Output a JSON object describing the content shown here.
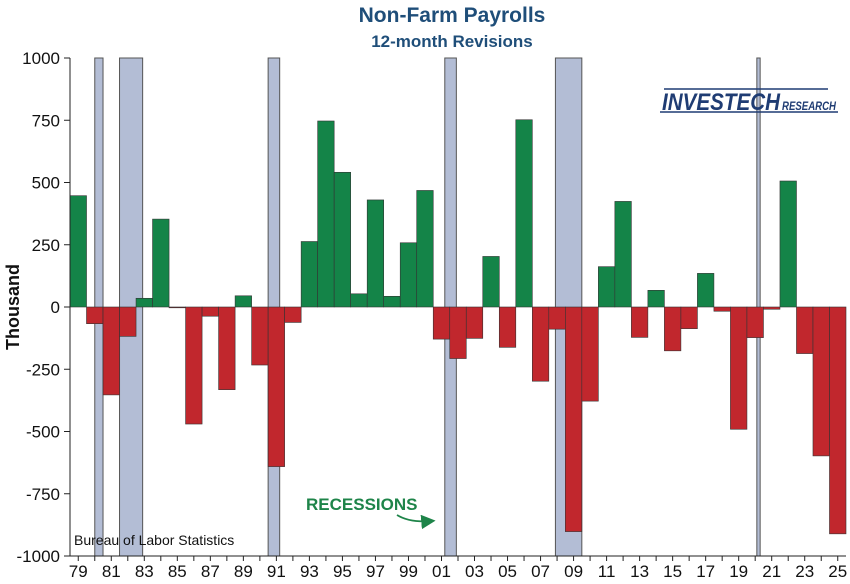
{
  "chart_data": {
    "type": "bar",
    "title": "Non-Farm Payrolls",
    "subtitle": "12-month Revisions",
    "ylabel": "Thousand",
    "ylim": [
      -1000,
      1000
    ],
    "yticks": [
      1000,
      750,
      500,
      250,
      0,
      -250,
      -500,
      -750,
      -1000
    ],
    "ytick_labels": [
      "1000",
      "750",
      "500",
      "250",
      "0",
      "-250",
      "-500",
      "-750",
      "-1000"
    ],
    "xtick_labels": [
      "79",
      "81",
      "83",
      "85",
      "87",
      "89",
      "91",
      "93",
      "95",
      "97",
      "99",
      "01",
      "03",
      "05",
      "07",
      "09",
      "11",
      "13",
      "15",
      "17",
      "19",
      "21",
      "23",
      "25"
    ],
    "x": [
      1979,
      1980,
      1981,
      1982,
      1983,
      1984,
      1985,
      1986,
      1987,
      1988,
      1989,
      1990,
      1991,
      1992,
      1993,
      1994,
      1995,
      1996,
      1997,
      1998,
      1999,
      2000,
      2001,
      2002,
      2003,
      2004,
      2005,
      2006,
      2007,
      2008,
      2009,
      2010,
      2011,
      2012,
      2013,
      2014,
      2015,
      2016,
      2017,
      2018,
      2019,
      2020,
      2021,
      2022,
      2023,
      2024,
      2025
    ],
    "values": [
      447,
      -67,
      -353,
      -118,
      35,
      353,
      -3,
      -470,
      -37,
      -332,
      45,
      -233,
      -641,
      -62,
      263,
      747,
      541,
      53,
      430,
      43,
      258,
      468,
      -129,
      -207,
      -126,
      203,
      -162,
      752,
      -298,
      -89,
      -902,
      -378,
      162,
      424,
      -122,
      67,
      -176,
      -87,
      135,
      -17,
      -491,
      -123,
      -9,
      506,
      -187,
      -598,
      -911
    ],
    "colors": {
      "positive": "#148448",
      "negative": "#c1272d",
      "recession": "#b3bdd5"
    },
    "recessions": [
      [
        1980.0,
        1980.5
      ],
      [
        1981.5,
        1982.9
      ],
      [
        1990.5,
        1991.2
      ],
      [
        2001.2,
        2001.9
      ],
      [
        2007.9,
        2009.5
      ],
      [
        2020.1,
        2020.3
      ]
    ],
    "annotations": {
      "recessions_label": "RECESSIONS",
      "source": "Bureau of Labor Statistics"
    },
    "logo": {
      "main": "INVESTECH",
      "sub": "RESEARCH"
    },
    "grid": false
  }
}
